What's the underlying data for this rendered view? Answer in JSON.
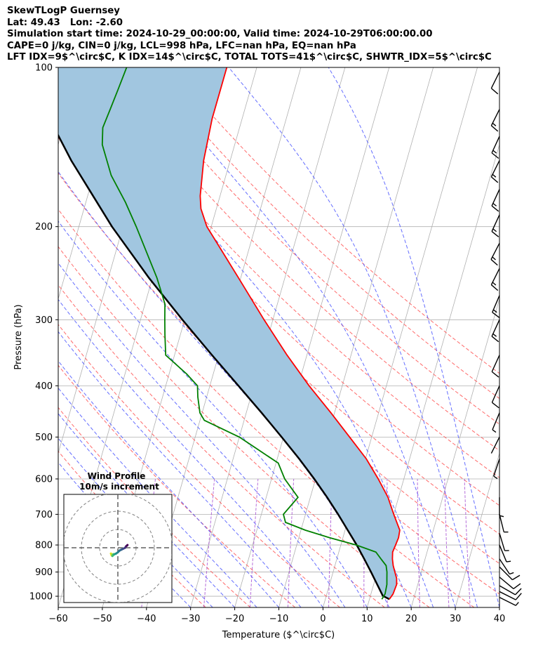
{
  "header": {
    "line1": "SkewTLogP Guernsey",
    "line2": "Lat: 49.43   Lon: -2.60",
    "line3": "Simulation start time: 2024-10-29_00:00:00, Valid time: 2024-10-29T06:00:00.00",
    "line4": "CAPE=0 j/kg, CIN=0 j/kg, LCL=998 hPa, LFC=nan hPa, EQ=nan hPa",
    "line5": "LFT IDX=9$^\\circ$C, K IDX=14$^\\circ$C, TOTAL TOTS=41$^\\circ$C, SHWTR_IDX=5$^\\circ$C"
  },
  "chart_data": {
    "type": "line",
    "xlabel": "Temperature ($^\\circ$C)",
    "ylabel": "Pressure (hPa)",
    "xlim": [
      -60,
      40
    ],
    "ylim": [
      1050,
      100
    ],
    "x_ticks": [
      -60,
      -50,
      -40,
      -30,
      -20,
      -10,
      0,
      10,
      20,
      30,
      40
    ],
    "y_ticks": [
      100,
      200,
      300,
      400,
      500,
      600,
      700,
      800,
      900,
      1000
    ],
    "log_y": true,
    "grid": true,
    "colors": {
      "temperature": "#ff0000",
      "dewpoint": "#008000",
      "parcel": "#000000",
      "fill": "#a1c6e0",
      "dry_adiabat": "#ff5a5a",
      "moist_adiabat": "#4a55ff",
      "mixing_ratio": "#9933cc",
      "isotherm": "#b0b0b0"
    },
    "temperature": [
      {
        "p": 1013,
        "t": 14.5
      },
      {
        "p": 990,
        "t": 15.0
      },
      {
        "p": 950,
        "t": 15.2
      },
      {
        "p": 925,
        "t": 14.8
      },
      {
        "p": 900,
        "t": 14.0
      },
      {
        "p": 875,
        "t": 13.2
      },
      {
        "p": 850,
        "t": 12.6
      },
      {
        "p": 825,
        "t": 12.2
      },
      {
        "p": 800,
        "t": 12.4
      },
      {
        "p": 775,
        "t": 12.6
      },
      {
        "p": 750,
        "t": 12.4
      },
      {
        "p": 700,
        "t": 10.0
      },
      {
        "p": 650,
        "t": 7.6
      },
      {
        "p": 600,
        "t": 4.2
      },
      {
        "p": 550,
        "t": 0.2
      },
      {
        "p": 500,
        "t": -5.0
      },
      {
        "p": 450,
        "t": -10.8
      },
      {
        "p": 400,
        "t": -17.5
      },
      {
        "p": 350,
        "t": -24.5
      },
      {
        "p": 300,
        "t": -32.0
      },
      {
        "p": 250,
        "t": -40.5
      },
      {
        "p": 220,
        "t": -46.5
      },
      {
        "p": 200,
        "t": -51.0
      },
      {
        "p": 185,
        "t": -53.5
      },
      {
        "p": 175,
        "t": -54.5
      },
      {
        "p": 150,
        "t": -56.0
      },
      {
        "p": 125,
        "t": -56.8
      },
      {
        "p": 100,
        "t": -56.8
      }
    ],
    "dewpoint": [
      {
        "p": 1013,
        "t": 12.8
      },
      {
        "p": 990,
        "t": 13.2
      },
      {
        "p": 950,
        "t": 13.0
      },
      {
        "p": 925,
        "t": 12.6
      },
      {
        "p": 900,
        "t": 12.2
      },
      {
        "p": 875,
        "t": 11.6
      },
      {
        "p": 850,
        "t": 10.0
      },
      {
        "p": 825,
        "t": 8.4
      },
      {
        "p": 800,
        "t": 3.5
      },
      {
        "p": 775,
        "t": -3.0
      },
      {
        "p": 750,
        "t": -9.0
      },
      {
        "p": 725,
        "t": -14.0
      },
      {
        "p": 700,
        "t": -15.0
      },
      {
        "p": 650,
        "t": -12.8
      },
      {
        "p": 600,
        "t": -17.0
      },
      {
        "p": 560,
        "t": -19.5
      },
      {
        "p": 500,
        "t": -30.0
      },
      {
        "p": 465,
        "t": -39.0
      },
      {
        "p": 450,
        "t": -40.5
      },
      {
        "p": 420,
        "t": -42.0
      },
      {
        "p": 400,
        "t": -42.8
      },
      {
        "p": 380,
        "t": -46.0
      },
      {
        "p": 350,
        "t": -52.0
      },
      {
        "p": 320,
        "t": -53.5
      },
      {
        "p": 300,
        "t": -54.5
      },
      {
        "p": 280,
        "t": -55.5
      },
      {
        "p": 250,
        "t": -59.0
      },
      {
        "p": 200,
        "t": -67.0
      },
      {
        "p": 180,
        "t": -71.0
      },
      {
        "p": 160,
        "t": -76.0
      },
      {
        "p": 140,
        "t": -80.0
      },
      {
        "p": 130,
        "t": -81.0
      },
      {
        "p": 120,
        "t": -80.5
      },
      {
        "p": 110,
        "t": -80.0
      },
      {
        "p": 100,
        "t": -79.5
      }
    ],
    "parcel": [
      {
        "p": 1013,
        "t": 14.5
      },
      {
        "p": 998,
        "t": 12.8
      },
      {
        "p": 950,
        "t": 10.8
      },
      {
        "p": 900,
        "t": 8.6
      },
      {
        "p": 850,
        "t": 6.2
      },
      {
        "p": 800,
        "t": 3.6
      },
      {
        "p": 750,
        "t": 0.6
      },
      {
        "p": 700,
        "t": -2.6
      },
      {
        "p": 650,
        "t": -6.2
      },
      {
        "p": 600,
        "t": -10.3
      },
      {
        "p": 550,
        "t": -15.0
      },
      {
        "p": 500,
        "t": -20.4
      },
      {
        "p": 450,
        "t": -26.5
      },
      {
        "p": 400,
        "t": -33.5
      },
      {
        "p": 350,
        "t": -41.5
      },
      {
        "p": 300,
        "t": -50.5
      },
      {
        "p": 250,
        "t": -60.8
      },
      {
        "p": 200,
        "t": -72.5
      },
      {
        "p": 150,
        "t": -86.0
      },
      {
        "p": 100,
        "t": -103.0
      }
    ],
    "wind_barbs": [
      {
        "p": 1005,
        "u": -12,
        "v": 6
      },
      {
        "p": 980,
        "u": -14,
        "v": 7
      },
      {
        "p": 955,
        "u": -14,
        "v": 8
      },
      {
        "p": 920,
        "u": -12,
        "v": 10
      },
      {
        "p": 880,
        "u": -12,
        "v": 12
      },
      {
        "p": 850,
        "u": -8,
        "v": 12
      },
      {
        "p": 800,
        "u": -5,
        "v": 12
      },
      {
        "p": 760,
        "u": -3,
        "v": 10
      },
      {
        "p": 700,
        "u": -2,
        "v": 8
      },
      {
        "p": 650,
        "u": 0,
        "v": 8
      },
      {
        "p": 550,
        "u": 2,
        "v": 6
      },
      {
        "p": 500,
        "u": 2,
        "v": 4
      },
      {
        "p": 450,
        "u": 5,
        "v": 12
      },
      {
        "p": 400,
        "u": 8,
        "v": 18
      },
      {
        "p": 350,
        "u": 10,
        "v": 22
      },
      {
        "p": 300,
        "u": 12,
        "v": 26
      },
      {
        "p": 270,
        "u": 12,
        "v": 28
      },
      {
        "p": 240,
        "u": 14,
        "v": 28
      },
      {
        "p": 215,
        "u": 14,
        "v": 27
      },
      {
        "p": 190,
        "u": 12,
        "v": 26
      },
      {
        "p": 170,
        "u": 12,
        "v": 26
      },
      {
        "p": 150,
        "u": 14,
        "v": 28
      },
      {
        "p": 135,
        "u": 12,
        "v": 26
      },
      {
        "p": 120,
        "u": 12,
        "v": 24
      },
      {
        "p": 102,
        "u": 10,
        "v": 20
      }
    ],
    "hodograph": {
      "title": "Wind Profile",
      "subtitle": "10m/s increment",
      "ring_increment": 10,
      "points": [
        {
          "u": -3.5,
          "v": -4.2
        },
        {
          "u": -3.8,
          "v": -3.2
        },
        {
          "u": -3.2,
          "v": -3.8
        },
        {
          "u": -2.5,
          "v": -3.5
        },
        {
          "u": -3.0,
          "v": -4.5
        },
        {
          "u": -2.0,
          "v": -3.6
        },
        {
          "u": -1.0,
          "v": -3.2
        },
        {
          "u": 0.0,
          "v": -2.5
        },
        {
          "u": 1.0,
          "v": -1.5
        },
        {
          "u": 2.0,
          "v": -1.0
        },
        {
          "u": 3.0,
          "v": -0.5
        },
        {
          "u": 4.0,
          "v": 0.0
        },
        {
          "u": 4.5,
          "v": 0.8
        },
        {
          "u": 5.0,
          "v": 1.2
        },
        {
          "u": 5.3,
          "v": 1.5
        }
      ]
    }
  }
}
